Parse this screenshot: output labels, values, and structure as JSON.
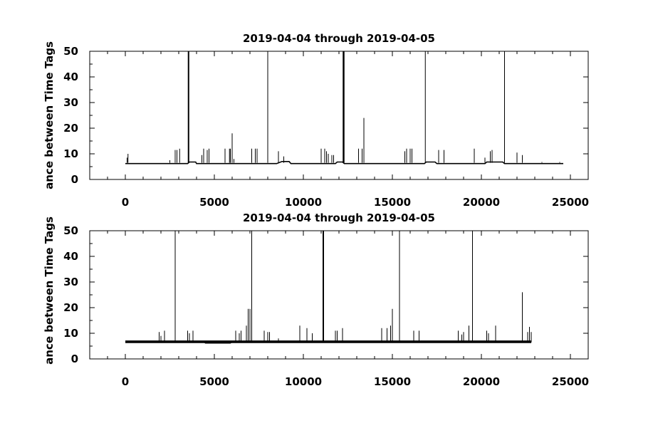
{
  "chart_data": [
    {
      "type": "line",
      "title": "2019-04-04 through 2019-04-05",
      "ylabel": "ance between Time Tags",
      "xlabel": "",
      "xlim": [
        -2000,
        26000
      ],
      "ylim": [
        0,
        50
      ],
      "x_ticks": [
        0,
        5000,
        10000,
        15000,
        20000,
        25000
      ],
      "y_ticks": [
        0,
        10,
        20,
        30,
        40,
        50
      ],
      "x_tick_labels": [
        "0",
        "5000",
        "10000",
        "15000",
        "20000",
        "25000"
      ],
      "y_tick_labels": [
        "0",
        "10",
        "20",
        "30",
        "40",
        "50"
      ],
      "color": "#000000",
      "series": [
        {
          "baseline": [
            [
              0,
              6.2
            ],
            [
              3500,
              6.2
            ],
            [
              3600,
              6.8
            ],
            [
              3950,
              6.8
            ],
            [
              4000,
              6.2
            ],
            [
              8500,
              6.2
            ],
            [
              8800,
              7.0
            ],
            [
              9200,
              7.0
            ],
            [
              9300,
              6.2
            ],
            [
              11800,
              6.2
            ],
            [
              11900,
              6.8
            ],
            [
              12200,
              6.8
            ],
            [
              12300,
              6.2
            ],
            [
              16800,
              6.2
            ],
            [
              16900,
              6.8
            ],
            [
              17400,
              6.8
            ],
            [
              17500,
              6.2
            ],
            [
              20200,
              6.2
            ],
            [
              20300,
              6.8
            ],
            [
              21200,
              6.8
            ],
            [
              21300,
              6.2
            ],
            [
              24600,
              6.2
            ]
          ],
          "spikes": [
            [
              100,
              8.5
            ],
            [
              150,
              10
            ],
            [
              2500,
              7.5
            ],
            [
              2800,
              11.5
            ],
            [
              2900,
              11.5
            ],
            [
              3050,
              12
            ],
            [
              3530,
              50
            ],
            [
              3550,
              50
            ],
            [
              3570,
              50
            ],
            [
              4300,
              9.5
            ],
            [
              4400,
              12
            ],
            [
              4600,
              11.5
            ],
            [
              4700,
              12
            ],
            [
              5600,
              12
            ],
            [
              5850,
              12
            ],
            [
              5900,
              12
            ],
            [
              6000,
              18
            ],
            [
              6100,
              8
            ],
            [
              7100,
              12
            ],
            [
              7300,
              12
            ],
            [
              7400,
              12
            ],
            [
              8000,
              50
            ],
            [
              8600,
              11
            ],
            [
              8900,
              9
            ],
            [
              11000,
              12
            ],
            [
              11200,
              12
            ],
            [
              11300,
              11
            ],
            [
              11400,
              10
            ],
            [
              11600,
              9.5
            ],
            [
              11700,
              9.5
            ],
            [
              12230,
              50
            ],
            [
              12250,
              50
            ],
            [
              12270,
              50
            ],
            [
              12290,
              50
            ],
            [
              13100,
              12
            ],
            [
              13300,
              12
            ],
            [
              13400,
              24
            ],
            [
              15700,
              11
            ],
            [
              15800,
              12
            ],
            [
              16000,
              12
            ],
            [
              16100,
              12
            ],
            [
              16850,
              50
            ],
            [
              17600,
              11.5
            ],
            [
              17900,
              11.5
            ],
            [
              19600,
              12
            ],
            [
              20200,
              8.5
            ],
            [
              20500,
              11
            ],
            [
              20600,
              11.5
            ],
            [
              21300,
              50
            ],
            [
              22000,
              10.5
            ],
            [
              22300,
              9.5
            ],
            [
              23400,
              6.8
            ],
            [
              24400,
              6.8
            ]
          ]
        }
      ]
    },
    {
      "type": "line",
      "title": "2019-04-04 through 2019-04-05",
      "ylabel": "ance between Time Tags",
      "xlabel": "",
      "xlim": [
        -2000,
        26000
      ],
      "ylim": [
        0,
        50
      ],
      "x_ticks": [
        0,
        5000,
        10000,
        15000,
        20000,
        25000
      ],
      "y_ticks": [
        0,
        10,
        20,
        30,
        40,
        50
      ],
      "x_tick_labels": [
        "0",
        "5000",
        "10000",
        "15000",
        "20000",
        "25000"
      ],
      "y_tick_labels": [
        "0",
        "10",
        "20",
        "30",
        "40",
        "50"
      ],
      "color": "#000000",
      "series": [
        {
          "baseline": [
            [
              0,
              6.8
            ],
            [
              4400,
              6.8
            ],
            [
              4500,
              6.2
            ],
            [
              5900,
              6.2
            ],
            [
              6000,
              6.8
            ],
            [
              22800,
              6.8
            ]
          ],
          "band": [
            [
              0,
              6.2,
              7.2
            ],
            [
              4400,
              6.2,
              7.2
            ],
            [
              6000,
              6.2,
              7.2
            ],
            [
              22800,
              6.2,
              7.2
            ]
          ],
          "spikes": [
            [
              1900,
              10.5
            ],
            [
              2000,
              9
            ],
            [
              2200,
              11
            ],
            [
              2800,
              50
            ],
            [
              3500,
              11
            ],
            [
              3600,
              10
            ],
            [
              3800,
              11
            ],
            [
              6200,
              11
            ],
            [
              6400,
              10
            ],
            [
              6500,
              11
            ],
            [
              6800,
              13
            ],
            [
              6900,
              19.5
            ],
            [
              7000,
              19.5
            ],
            [
              7100,
              50
            ],
            [
              7800,
              11
            ],
            [
              8000,
              10.5
            ],
            [
              8100,
              10.5
            ],
            [
              8600,
              8
            ],
            [
              9800,
              13
            ],
            [
              10200,
              12
            ],
            [
              10500,
              10
            ],
            [
              11100,
              50
            ],
            [
              11120,
              50
            ],
            [
              11140,
              50
            ],
            [
              11800,
              11
            ],
            [
              11900,
              11
            ],
            [
              12200,
              12
            ],
            [
              14400,
              12
            ],
            [
              14700,
              12
            ],
            [
              14900,
              13
            ],
            [
              15000,
              19.5
            ],
            [
              15400,
              50
            ],
            [
              16200,
              11
            ],
            [
              16500,
              11
            ],
            [
              18700,
              11
            ],
            [
              18900,
              9.5
            ],
            [
              19000,
              10.5
            ],
            [
              19300,
              13
            ],
            [
              19500,
              50
            ],
            [
              20300,
              11
            ],
            [
              20400,
              10
            ],
            [
              20800,
              13
            ],
            [
              22300,
              26
            ],
            [
              22600,
              10.5
            ],
            [
              22700,
              12.5
            ],
            [
              22800,
              10.5
            ]
          ]
        }
      ]
    }
  ]
}
